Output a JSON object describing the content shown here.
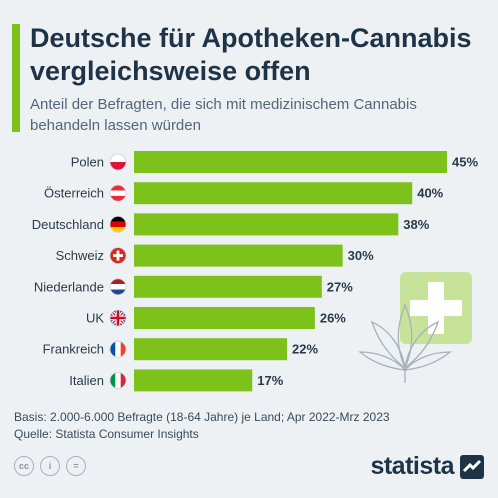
{
  "header": {
    "title": "Deutsche für Apotheken-Cannabis vergleichsweise offen",
    "subtitle": "Anteil der Befragten, die sich mit medizinischem Cannabis behandeln lassen würden"
  },
  "chart_data": {
    "type": "bar",
    "orientation": "horizontal",
    "categories": [
      "Polen",
      "Österreich",
      "Deutschland",
      "Schweiz",
      "Niederlande",
      "UK",
      "Frankreich",
      "Italien"
    ],
    "values": [
      45,
      40,
      38,
      30,
      27,
      26,
      22,
      17
    ],
    "value_labels": [
      "45%",
      "40%",
      "38%",
      "30%",
      "27%",
      "26%",
      "22%",
      "17%"
    ],
    "flags": [
      "flag-poland-icon",
      "flag-austria-icon",
      "flag-germany-icon",
      "flag-switzerland-icon",
      "flag-netherlands-icon",
      "flag-uk-icon",
      "flag-france-icon",
      "flag-italy-icon"
    ],
    "xlim": [
      0,
      45
    ],
    "bar_color": "#7cc21a",
    "grid": false
  },
  "footer": {
    "basis": "Basis: 2.000-6.000 Befragte (18-64 Jahre) je Land; Apr 2022-Mrz 2023",
    "source": "Quelle: Statista Consumer Insights"
  },
  "license_icons": [
    "cc",
    "i",
    "="
  ],
  "brand": {
    "name": "statista"
  }
}
